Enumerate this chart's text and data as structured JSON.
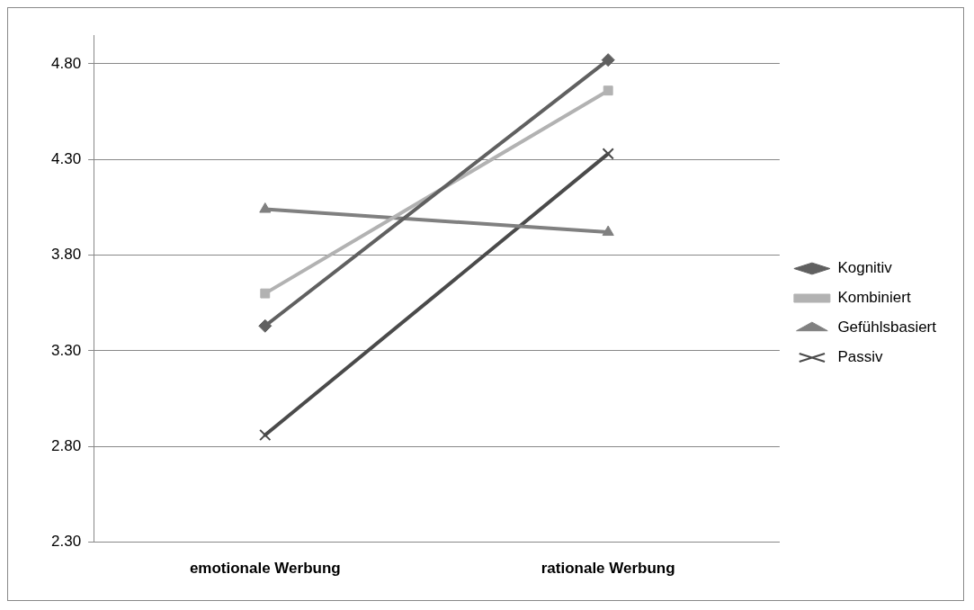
{
  "chart_data": {
    "type": "line",
    "categories": [
      "emotionale Werbung",
      "rationale Werbung"
    ],
    "series": [
      {
        "name": "Kognitiv",
        "color": "#606060",
        "marker": "diamond",
        "values": [
          3.43,
          4.82
        ]
      },
      {
        "name": "Kombiniert",
        "color": "#b2b2b2",
        "marker": "square",
        "values": [
          3.6,
          4.66
        ]
      },
      {
        "name": "Gefühlsbasiert",
        "color": "#808080",
        "marker": "triangle",
        "values": [
          4.04,
          3.92
        ]
      },
      {
        "name": "Passiv",
        "color": "#4a4a4a",
        "marker": "cross",
        "values": [
          2.86,
          4.33
        ]
      }
    ],
    "ylim": [
      2.3,
      4.95
    ],
    "yticks": [
      {
        "value": 2.3,
        "label": "2.30"
      },
      {
        "value": 2.8,
        "label": "2.80"
      },
      {
        "value": 3.3,
        "label": "3.30"
      },
      {
        "value": 3.8,
        "label": "3.80"
      },
      {
        "value": 4.3,
        "label": "4.30"
      },
      {
        "value": 4.8,
        "label": "4.80"
      }
    ],
    "grid": "y",
    "legend": "right",
    "line_style": "solid"
  }
}
